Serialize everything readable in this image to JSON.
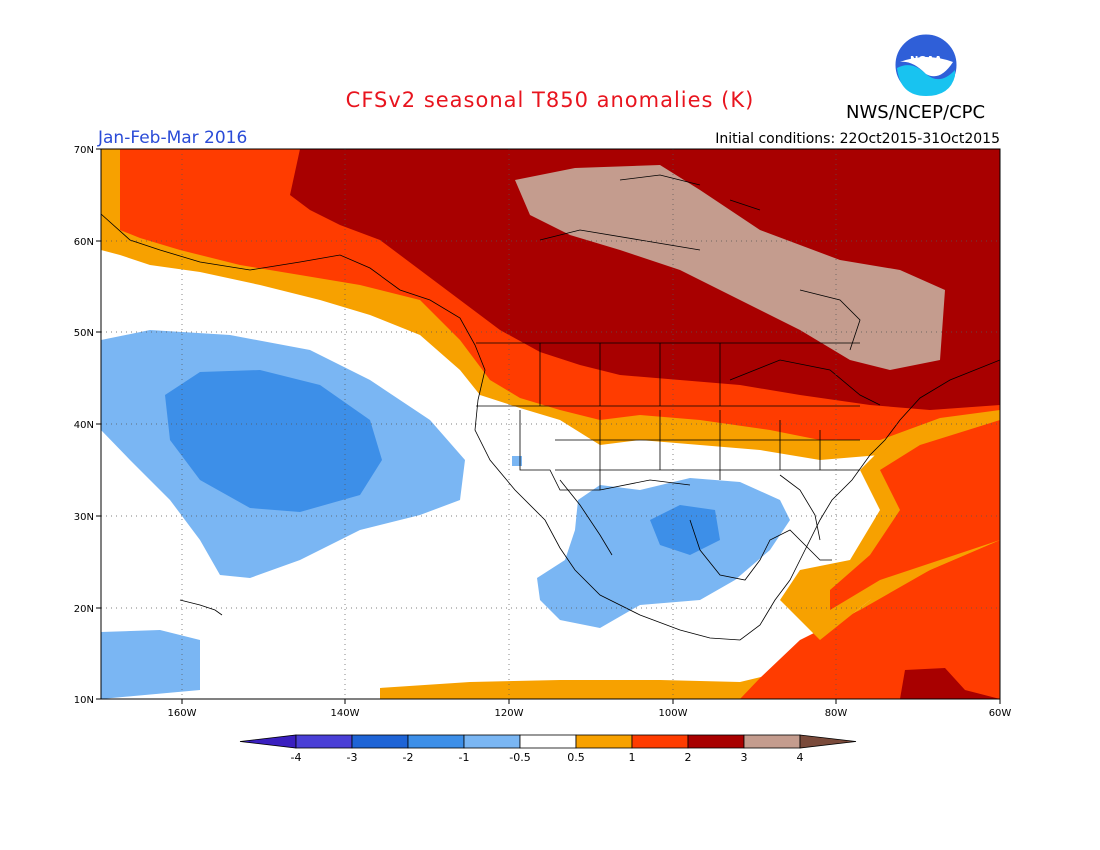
{
  "title": "CFSv2 seasonal T850 anomalies (K)",
  "period": "Jan-Feb-Mar 2016",
  "initial_conditions": "Initial conditions: 22Oct2015-31Oct2015",
  "agency": "NWS/NCEP/CPC",
  "logo_text": "NOAA",
  "map": {
    "lat_labels": [
      "70N",
      "60N",
      "50N",
      "40N",
      "30N",
      "20N",
      "10N"
    ],
    "lon_labels": [
      "160W",
      "140W",
      "120W",
      "100W",
      "80W",
      "60W"
    ]
  },
  "colorbar": {
    "labels": [
      "-4",
      "-3",
      "-2",
      "-1",
      "-0.5",
      "0.5",
      "1",
      "2",
      "3",
      "4"
    ],
    "colors": [
      "#3a1fbf",
      "#4a3fd6",
      "#1e64d6",
      "#3d8fe8",
      "#7ab6f3",
      "#ffffff",
      "#f7a100",
      "#ff3c00",
      "#a80000",
      "#c49c8e",
      "#7a4a3a"
    ]
  },
  "legend_colors": {
    "strong_cold": "#3d8fe8",
    "cold": "#7ab6f3",
    "neutral": "#ffffff",
    "warm": "#f7a100",
    "warmer": "#ff3c00",
    "very_warm": "#a80000",
    "extreme_warm": "#c49c8e"
  }
}
